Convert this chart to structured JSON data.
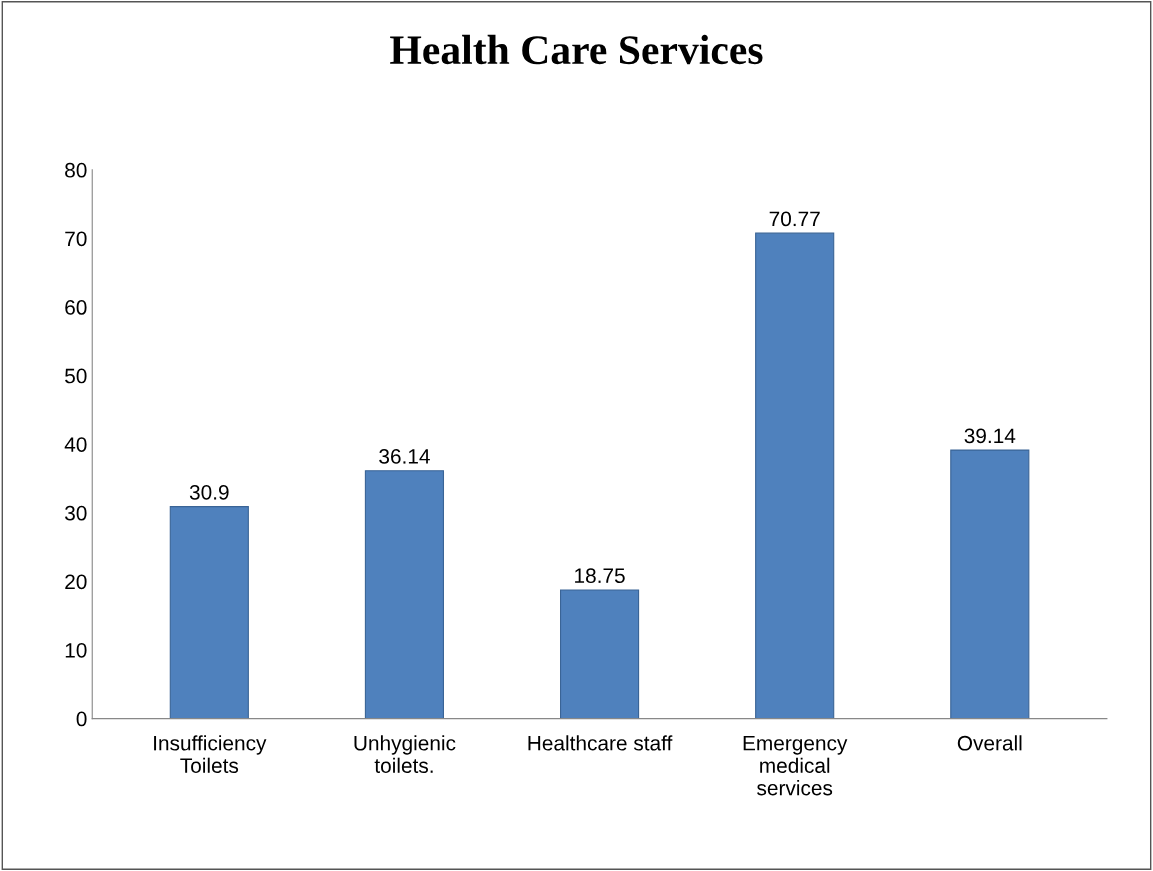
{
  "chart_data": {
    "type": "bar",
    "title": "Health Care Services",
    "categories": [
      "Insufficiency\nToilets",
      "Unhygienic\ntoilets.",
      "Healthcare staff",
      "Emergency\nmedical\nservices",
      "Overall"
    ],
    "values": [
      30.9,
      36.14,
      18.75,
      70.77,
      39.14
    ],
    "color": "#4f81bd",
    "ylim": [
      0,
      80
    ],
    "yticks": [
      0,
      10,
      20,
      30,
      40,
      50,
      60,
      70,
      80
    ],
    "data_labels": true,
    "grid": false,
    "legend": false
  }
}
